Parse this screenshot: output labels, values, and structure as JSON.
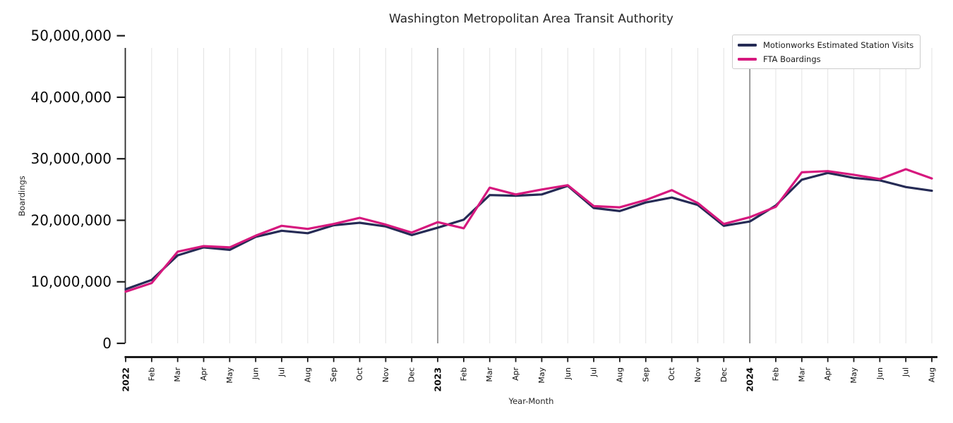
{
  "chart": {
    "title": "Washington Metropolitan Area Transit Authority",
    "xlabel": "Year-Month",
    "ylabel": "Boardings"
  },
  "legend": {
    "items": [
      {
        "label": "Motionworks Estimated Station Visits",
        "color": "#252b55"
      },
      {
        "label": "FTA Boardings",
        "color": "#d6187e"
      }
    ]
  },
  "chart_data": {
    "type": "line",
    "title": "Washington Metropolitan Area Transit Authority",
    "xlabel": "Year-Month",
    "ylabel": "Boardings",
    "x_tick_labels": [
      "2022",
      "Feb",
      "Mar",
      "Apr",
      "May",
      "Jun",
      "Jul",
      "Aug",
      "Sep",
      "Oct",
      "Nov",
      "Dec",
      "2023",
      "Feb",
      "Mar",
      "Apr",
      "May",
      "Jun",
      "Jul",
      "Aug",
      "Sep",
      "Oct",
      "Nov",
      "Dec",
      "2024",
      "Feb",
      "Mar",
      "Apr",
      "May",
      "Jun",
      "Jul",
      "Aug"
    ],
    "year_separator_indices": [
      12,
      24
    ],
    "y_tick_labels": [
      "0",
      "10,000,000",
      "20,000,000",
      "30,000,000",
      "40,000,000",
      "50,000,000"
    ],
    "y_tick_values_millions": [
      0,
      10,
      20,
      30,
      40,
      50
    ],
    "ylim_millions": [
      0,
      48
    ],
    "grid": "vertical-monthly-only",
    "legend_position": "upper right",
    "series": [
      {
        "name": "Motionworks Estimated Station Visits",
        "color": "#252b55",
        "values_millions": [
          8.8,
          10.3,
          14.3,
          15.6,
          15.2,
          17.3,
          18.3,
          17.9,
          19.2,
          19.6,
          19.0,
          17.6,
          18.8,
          20.1,
          24.1,
          24.0,
          24.2,
          25.6,
          22.0,
          21.5,
          22.9,
          23.7,
          22.5,
          19.1,
          19.8,
          22.4,
          26.6,
          27.7,
          26.9,
          26.5,
          25.4,
          24.8
        ]
      },
      {
        "name": "FTA Boardings",
        "color": "#d6187e",
        "values_millions": [
          8.4,
          9.8,
          14.9,
          15.8,
          15.6,
          17.5,
          19.1,
          18.6,
          19.4,
          20.4,
          19.3,
          18.0,
          19.7,
          18.7,
          25.3,
          24.2,
          25.0,
          25.7,
          22.3,
          22.1,
          23.3,
          24.9,
          22.8,
          19.4,
          20.5,
          22.2,
          27.8,
          28.0,
          27.4,
          26.7,
          28.3,
          26.8
        ]
      }
    ],
    "style": {
      "gridline_color": "#e3e3e3",
      "year_line_color": "#3d3d3d",
      "axis_color": "#1a1a1a",
      "tick_label_color": "#0a0a0a"
    }
  }
}
